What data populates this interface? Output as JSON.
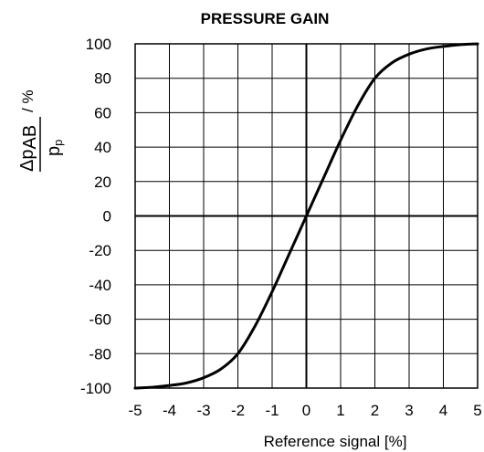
{
  "chart_data": {
    "type": "line",
    "title": "PRESSURE GAIN",
    "xlabel": "Reference signal [%]",
    "ylabel": {
      "numerator_main": "Δp",
      "numerator_sub": "AB",
      "denominator_main": "p",
      "denominator_sub": "p",
      "unit": "/ %"
    },
    "xlim": [
      -5,
      5
    ],
    "ylim": [
      -100,
      100
    ],
    "xticks": [
      -5,
      -4,
      -3,
      -2,
      -1,
      0,
      1,
      2,
      3,
      4,
      5
    ],
    "yticks": [
      100,
      80,
      60,
      40,
      20,
      0,
      -20,
      -40,
      -60,
      -80,
      -100
    ],
    "grid": true,
    "series": [
      {
        "color": "#000000",
        "x": [
          -5,
          -4.5,
          -4,
          -3.5,
          -3,
          -2.5,
          -2,
          -1.5,
          -1,
          -0.5,
          0,
          0.5,
          1,
          1.5,
          2,
          2.5,
          3,
          3.5,
          4,
          4.5,
          5
        ],
        "y": [
          -100,
          -99.5,
          -98.5,
          -97,
          -94,
          -89,
          -80,
          -64,
          -44,
          -22,
          0,
          22,
          44,
          64,
          80,
          89,
          94,
          97,
          98.5,
          99.5,
          100
        ]
      }
    ]
  }
}
